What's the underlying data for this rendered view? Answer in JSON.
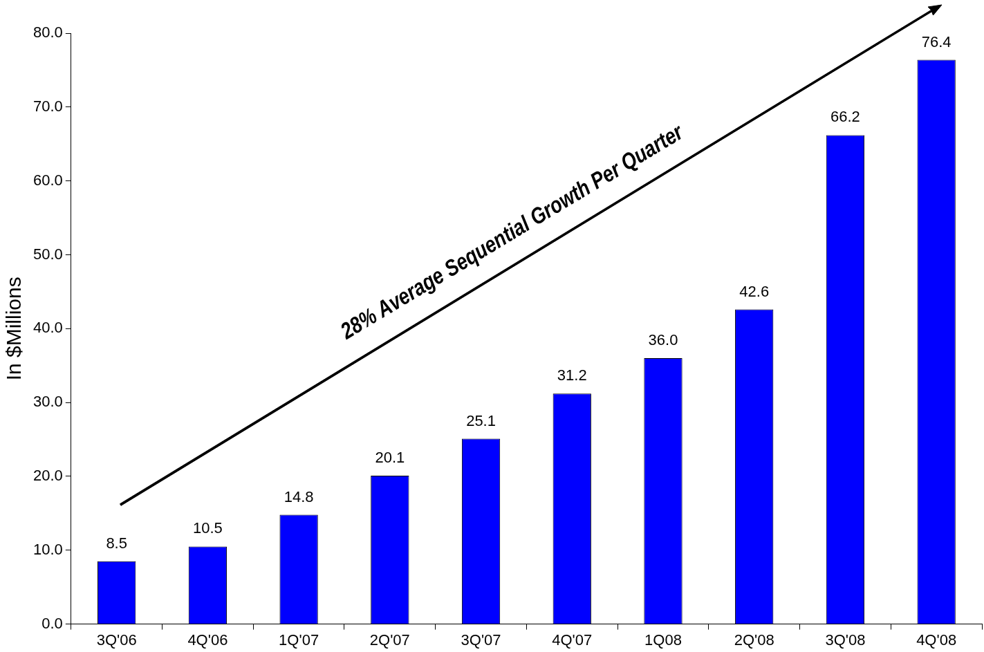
{
  "chart_data": {
    "type": "bar",
    "ylabel": "In $Millions",
    "categories": [
      "3Q'06",
      "4Q'06",
      "1Q'07",
      "2Q'07",
      "3Q'07",
      "4Q'07",
      "1Q08",
      "2Q'08",
      "3Q'08",
      "4Q'08"
    ],
    "values": [
      8.5,
      10.5,
      14.8,
      20.1,
      25.1,
      31.2,
      36.0,
      42.6,
      66.2,
      76.4
    ],
    "value_labels": [
      "8.5",
      "10.5",
      "14.8",
      "20.1",
      "25.1",
      "31.2",
      "36.0",
      "42.6",
      "66.2",
      "76.4"
    ],
    "color": "#0000ff",
    "ylim": [
      0,
      80
    ],
    "yticks": [
      {
        "value": 0,
        "label": "0.0"
      },
      {
        "value": 10,
        "label": "10.0"
      },
      {
        "value": 20,
        "label": "20.0"
      },
      {
        "value": 30,
        "label": "30.0"
      },
      {
        "value": 40,
        "label": "40.0"
      },
      {
        "value": 50,
        "label": "50.0"
      },
      {
        "value": 60,
        "label": "60.0"
      },
      {
        "value": 70,
        "label": "70.0"
      },
      {
        "value": 80,
        "label": "80.0"
      }
    ],
    "annotations": [
      "28% Average Sequential Growth Per Quarter"
    ],
    "grid": false,
    "legend": false
  }
}
